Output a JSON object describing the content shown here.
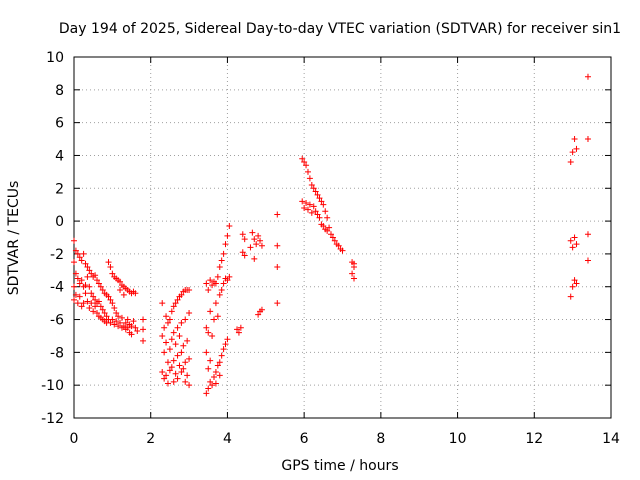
{
  "chart_data": {
    "type": "scatter",
    "title": "Day 194 of 2025, Sidereal Day-to-day VTEC variation (SDTVAR) for receiver sin1",
    "xlabel": "GPS time / hours",
    "ylabel": "SDTVAR / TECUs",
    "xlim": [
      0,
      14
    ],
    "ylim": [
      -12,
      10
    ],
    "xticks": [
      0,
      2,
      4,
      6,
      8,
      10,
      12,
      14
    ],
    "yticks": [
      -12,
      -10,
      -8,
      -6,
      -4,
      -2,
      0,
      2,
      4,
      6,
      8,
      10
    ],
    "xtick_labels": [
      "0",
      "2",
      "4",
      "6",
      "8",
      "10",
      "12",
      "14"
    ],
    "ytick_labels": [
      "-12",
      "-10",
      "-8",
      "-6",
      "-4",
      "-2",
      "0",
      "2",
      "4",
      "6",
      "8",
      "10"
    ],
    "grid": true,
    "marker": "+",
    "color": "#ff0000",
    "series": [
      {
        "name": "SDTVAR",
        "points": [
          [
            0.0,
            -1.2
          ],
          [
            0.0,
            -2.5
          ],
          [
            0.0,
            -4.0
          ],
          [
            0.0,
            -4.8
          ],
          [
            0.05,
            -1.8
          ],
          [
            0.05,
            -3.2
          ],
          [
            0.05,
            -4.5
          ],
          [
            0.1,
            -2.0
          ],
          [
            0.1,
            -3.5
          ],
          [
            0.1,
            -5.0
          ],
          [
            0.15,
            -2.2
          ],
          [
            0.15,
            -3.8
          ],
          [
            0.15,
            -4.6
          ],
          [
            0.2,
            -2.4
          ],
          [
            0.2,
            -3.6
          ],
          [
            0.2,
            -5.2
          ],
          [
            0.25,
            -2.0
          ],
          [
            0.25,
            -4.0
          ],
          [
            0.25,
            -5.0
          ],
          [
            0.3,
            -2.6
          ],
          [
            0.3,
            -3.9
          ],
          [
            0.3,
            -4.4
          ],
          [
            0.35,
            -2.8
          ],
          [
            0.35,
            -3.4
          ],
          [
            0.35,
            -4.9
          ],
          [
            0.4,
            -3.0
          ],
          [
            0.4,
            -4.0
          ],
          [
            0.4,
            -5.3
          ],
          [
            0.45,
            -3.2
          ],
          [
            0.45,
            -4.4
          ],
          [
            0.45,
            -5.0
          ],
          [
            0.5,
            -3.4
          ],
          [
            0.5,
            -4.6
          ],
          [
            0.5,
            -5.5
          ],
          [
            0.55,
            -3.3
          ],
          [
            0.55,
            -4.8
          ],
          [
            0.55,
            -5.2
          ],
          [
            0.6,
            -3.6
          ],
          [
            0.6,
            -5.0
          ],
          [
            0.6,
            -5.6
          ],
          [
            0.65,
            -3.8
          ],
          [
            0.65,
            -4.9
          ],
          [
            0.65,
            -5.8
          ],
          [
            0.7,
            -4.0
          ],
          [
            0.7,
            -5.2
          ],
          [
            0.7,
            -5.9
          ],
          [
            0.75,
            -4.2
          ],
          [
            0.75,
            -5.4
          ],
          [
            0.75,
            -6.0
          ],
          [
            0.8,
            -4.4
          ],
          [
            0.8,
            -5.6
          ],
          [
            0.8,
            -6.1
          ],
          [
            0.85,
            -4.5
          ],
          [
            0.85,
            -5.8
          ],
          [
            0.85,
            -6.2
          ],
          [
            0.9,
            -2.5
          ],
          [
            0.9,
            -4.6
          ],
          [
            0.9,
            -6.0
          ],
          [
            0.95,
            -2.8
          ],
          [
            0.95,
            -4.8
          ],
          [
            0.95,
            -6.2
          ],
          [
            1.0,
            -3.2
          ],
          [
            1.0,
            -5.0
          ],
          [
            1.0,
            -6.0
          ],
          [
            1.05,
            -3.4
          ],
          [
            1.05,
            -5.3
          ],
          [
            1.05,
            -6.3
          ],
          [
            1.1,
            -3.5
          ],
          [
            1.1,
            -5.6
          ],
          [
            1.1,
            -6.1
          ],
          [
            1.15,
            -3.6
          ],
          [
            1.15,
            -5.8
          ],
          [
            1.15,
            -6.4
          ],
          [
            1.2,
            -3.7
          ],
          [
            1.2,
            -4.2
          ],
          [
            1.2,
            -6.2
          ],
          [
            1.25,
            -3.9
          ],
          [
            1.25,
            -5.9
          ],
          [
            1.25,
            -6.5
          ],
          [
            1.3,
            -4.0
          ],
          [
            1.3,
            -4.5
          ],
          [
            1.3,
            -6.4
          ],
          [
            1.35,
            -4.1
          ],
          [
            1.35,
            -6.2
          ],
          [
            1.35,
            -6.6
          ],
          [
            1.4,
            -4.2
          ],
          [
            1.4,
            -6.0
          ],
          [
            1.4,
            -6.5
          ],
          [
            1.45,
            -4.3
          ],
          [
            1.45,
            -6.3
          ],
          [
            1.45,
            -6.8
          ],
          [
            1.5,
            -4.4
          ],
          [
            1.5,
            -6.4
          ],
          [
            1.5,
            -6.9
          ],
          [
            1.55,
            -4.3
          ],
          [
            1.55,
            -6.1
          ],
          [
            1.6,
            -4.4
          ],
          [
            1.6,
            -6.5
          ],
          [
            1.65,
            -6.7
          ],
          [
            1.8,
            -6.0
          ],
          [
            1.8,
            -6.6
          ],
          [
            1.8,
            -7.3
          ],
          [
            2.3,
            -5.0
          ],
          [
            2.3,
            -7.0
          ],
          [
            2.3,
            -9.2
          ],
          [
            2.35,
            -6.5
          ],
          [
            2.35,
            -8.0
          ],
          [
            2.35,
            -9.6
          ],
          [
            2.4,
            -5.8
          ],
          [
            2.4,
            -7.4
          ],
          [
            2.4,
            -9.4
          ],
          [
            2.45,
            -6.2
          ],
          [
            2.45,
            -8.6
          ],
          [
            2.45,
            -9.9
          ],
          [
            2.5,
            -6.0
          ],
          [
            2.5,
            -7.8
          ],
          [
            2.5,
            -9.1
          ],
          [
            2.55,
            -5.5
          ],
          [
            2.55,
            -7.2
          ],
          [
            2.55,
            -8.9
          ],
          [
            2.6,
            -5.2
          ],
          [
            2.6,
            -6.8
          ],
          [
            2.6,
            -8.5
          ],
          [
            2.6,
            -9.8
          ],
          [
            2.65,
            -5.0
          ],
          [
            2.65,
            -7.5
          ],
          [
            2.65,
            -9.3
          ],
          [
            2.7,
            -4.8
          ],
          [
            2.7,
            -6.5
          ],
          [
            2.7,
            -8.2
          ],
          [
            2.7,
            -9.6
          ],
          [
            2.75,
            -4.6
          ],
          [
            2.75,
            -7.0
          ],
          [
            2.75,
            -8.8
          ],
          [
            2.8,
            -4.5
          ],
          [
            2.8,
            -6.2
          ],
          [
            2.8,
            -8.0
          ],
          [
            2.8,
            -9.2
          ],
          [
            2.85,
            -4.3
          ],
          [
            2.85,
            -7.6
          ],
          [
            2.85,
            -9.0
          ],
          [
            2.9,
            -4.2
          ],
          [
            2.9,
            -6.0
          ],
          [
            2.9,
            -8.6
          ],
          [
            2.9,
            -9.8
          ],
          [
            2.95,
            -4.2
          ],
          [
            2.95,
            -7.3
          ],
          [
            2.95,
            -9.4
          ],
          [
            3.0,
            -4.2
          ],
          [
            3.0,
            -5.6
          ],
          [
            3.0,
            -8.4
          ],
          [
            3.0,
            -10.0
          ],
          [
            3.45,
            -3.8
          ],
          [
            3.45,
            -6.5
          ],
          [
            3.45,
            -8.0
          ],
          [
            3.45,
            -10.5
          ],
          [
            3.5,
            -4.2
          ],
          [
            3.5,
            -6.8
          ],
          [
            3.5,
            -9.0
          ],
          [
            3.5,
            -10.2
          ],
          [
            3.55,
            -3.6
          ],
          [
            3.55,
            -5.5
          ],
          [
            3.55,
            -8.5
          ],
          [
            3.55,
            -9.8
          ],
          [
            3.6,
            -3.9
          ],
          [
            3.6,
            -7.0
          ],
          [
            3.6,
            -10.0
          ],
          [
            3.65,
            -3.7
          ],
          [
            3.65,
            -6.0
          ],
          [
            3.65,
            -9.5
          ],
          [
            3.7,
            -3.8
          ],
          [
            3.7,
            -5.0
          ],
          [
            3.7,
            -9.2
          ],
          [
            3.7,
            -9.9
          ],
          [
            3.75,
            -3.4
          ],
          [
            3.75,
            -5.8
          ],
          [
            3.75,
            -8.8
          ],
          [
            3.8,
            -2.8
          ],
          [
            3.8,
            -4.5
          ],
          [
            3.8,
            -8.6
          ],
          [
            3.8,
            -9.4
          ],
          [
            3.85,
            -2.4
          ],
          [
            3.85,
            -4.2
          ],
          [
            3.85,
            -8.2
          ],
          [
            3.9,
            -2.0
          ],
          [
            3.9,
            -3.8
          ],
          [
            3.9,
            -7.8
          ],
          [
            3.95,
            -1.4
          ],
          [
            3.95,
            -3.5
          ],
          [
            3.95,
            -7.5
          ],
          [
            4.0,
            -0.9
          ],
          [
            4.0,
            -3.6
          ],
          [
            4.0,
            -7.2
          ],
          [
            4.05,
            -0.3
          ],
          [
            4.05,
            -3.4
          ],
          [
            4.25,
            -6.6
          ],
          [
            4.3,
            -6.8
          ],
          [
            4.35,
            -6.5
          ],
          [
            4.4,
            -0.8
          ],
          [
            4.4,
            -1.9
          ],
          [
            4.45,
            -1.1
          ],
          [
            4.45,
            -2.1
          ],
          [
            4.6,
            -1.6
          ],
          [
            4.65,
            -0.7
          ],
          [
            4.7,
            -1.1
          ],
          [
            4.75,
            -1.4
          ],
          [
            4.8,
            -0.9
          ],
          [
            4.85,
            -1.2
          ],
          [
            4.9,
            -1.5
          ],
          [
            4.8,
            -5.7
          ],
          [
            4.85,
            -5.5
          ],
          [
            4.9,
            -5.4
          ],
          [
            4.7,
            -2.3
          ],
          [
            5.3,
            0.4
          ],
          [
            5.3,
            -1.5
          ],
          [
            5.3,
            -2.8
          ],
          [
            5.3,
            -5.0
          ],
          [
            5.95,
            3.8
          ],
          [
            5.95,
            1.2
          ],
          [
            6.0,
            3.6
          ],
          [
            6.0,
            0.8
          ],
          [
            6.05,
            3.4
          ],
          [
            6.05,
            1.1
          ],
          [
            6.1,
            3.0
          ],
          [
            6.1,
            0.7
          ],
          [
            6.15,
            2.6
          ],
          [
            6.15,
            1.0
          ],
          [
            6.2,
            2.2
          ],
          [
            6.2,
            0.5
          ],
          [
            6.25,
            2.0
          ],
          [
            6.25,
            0.9
          ],
          [
            6.3,
            1.8
          ],
          [
            6.3,
            0.6
          ],
          [
            6.35,
            1.6
          ],
          [
            6.35,
            0.4
          ],
          [
            6.4,
            1.4
          ],
          [
            6.4,
            0.2
          ],
          [
            6.45,
            1.2
          ],
          [
            6.45,
            -0.2
          ],
          [
            6.5,
            1.0
          ],
          [
            6.5,
            -0.3
          ],
          [
            6.55,
            0.6
          ],
          [
            6.55,
            -0.5
          ],
          [
            6.6,
            0.2
          ],
          [
            6.6,
            -0.6
          ],
          [
            6.65,
            -0.4
          ],
          [
            6.7,
            -0.8
          ],
          [
            6.75,
            -1.0
          ],
          [
            6.8,
            -1.2
          ],
          [
            6.85,
            -1.4
          ],
          [
            6.9,
            -1.5
          ],
          [
            6.95,
            -1.7
          ],
          [
            7.0,
            -1.8
          ],
          [
            7.25,
            -2.5
          ],
          [
            7.25,
            -3.2
          ],
          [
            7.3,
            -2.8
          ],
          [
            7.3,
            -3.5
          ],
          [
            7.3,
            -2.6
          ],
          [
            12.95,
            3.6
          ],
          [
            12.95,
            -1.2
          ],
          [
            12.95,
            -4.6
          ],
          [
            13.0,
            4.2
          ],
          [
            13.0,
            -1.6
          ],
          [
            13.0,
            -4.0
          ],
          [
            13.05,
            5.0
          ],
          [
            13.05,
            -1.0
          ],
          [
            13.05,
            -3.6
          ],
          [
            13.1,
            4.4
          ],
          [
            13.1,
            -1.4
          ],
          [
            13.1,
            -3.8
          ],
          [
            13.4,
            8.8
          ],
          [
            13.4,
            5.0
          ],
          [
            13.4,
            -0.8
          ],
          [
            13.4,
            -2.4
          ]
        ]
      }
    ]
  }
}
